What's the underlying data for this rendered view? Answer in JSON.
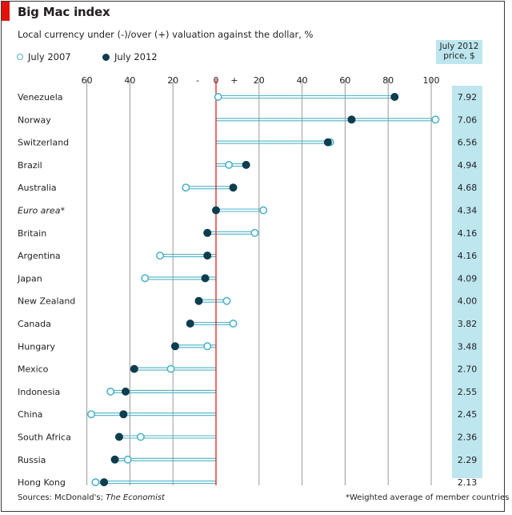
{
  "title": "Big Mac index",
  "subtitle": "Local currency under (-)/over (+) valuation against the dollar, %",
  "legend": {
    "series_2007": "July 2007",
    "series_2012": "July 2012"
  },
  "price_header": {
    "line1": "July 2012",
    "line2": "price, $"
  },
  "sources_prefix": "Sources: McDonald's; ",
  "sources_italic": "The Economist",
  "footnote": "*Weighted average of member countries",
  "colors": {
    "line": "#4eb3c8",
    "dot_2012": "#0d3d4e",
    "zero_line": "#e3120b",
    "price_bg": "#bde6ef"
  },
  "chart_data": {
    "type": "dumbbell",
    "title": "Big Mac index",
    "xlabel": "Local currency under (-)/over (+) valuation against the dollar, %",
    "xlim": [
      -62,
      104
    ],
    "ticks": [
      {
        "value": -60,
        "label": "60"
      },
      {
        "value": -40,
        "label": "40"
      },
      {
        "value": -20,
        "label": "20"
      },
      {
        "value": -8.5,
        "label": "-"
      },
      {
        "value": 0,
        "label": "0"
      },
      {
        "value": 8.5,
        "label": "+"
      },
      {
        "value": 20,
        "label": "20"
      },
      {
        "value": 40,
        "label": "40"
      },
      {
        "value": 60,
        "label": "60"
      },
      {
        "value": 80,
        "label": "80"
      },
      {
        "value": 100,
        "label": "100"
      }
    ],
    "countries": [
      "Venezuela",
      "Norway",
      "Switzerland",
      "Brazil",
      "Australia",
      "Euro area*",
      "Britain",
      "Argentina",
      "Japan",
      "New Zealand",
      "Canada",
      "Hungary",
      "Mexico",
      "Indonesia",
      "China",
      "South Africa",
      "Russia",
      "Hong Kong"
    ],
    "italic_countries": [
      "Euro area*"
    ],
    "series": [
      {
        "name": "July 2007",
        "values": [
          1,
          102,
          53,
          6,
          -14,
          22,
          18,
          -26,
          -33,
          5,
          8,
          -4,
          -21,
          -49,
          -58,
          -35,
          -41,
          -56
        ]
      },
      {
        "name": "July 2012",
        "values": [
          83,
          63,
          52,
          14,
          8,
          0,
          -4,
          -4,
          -5,
          -8,
          -12,
          -19,
          -38,
          -42,
          -43,
          -45,
          -47,
          -52
        ]
      }
    ],
    "prices": [
      "7.92",
      "7.06",
      "6.56",
      "4.94",
      "4.68",
      "4.34",
      "4.16",
      "4.16",
      "4.09",
      "4.00",
      "3.82",
      "3.48",
      "2.70",
      "2.55",
      "2.45",
      "2.36",
      "2.29",
      "2.13"
    ]
  }
}
